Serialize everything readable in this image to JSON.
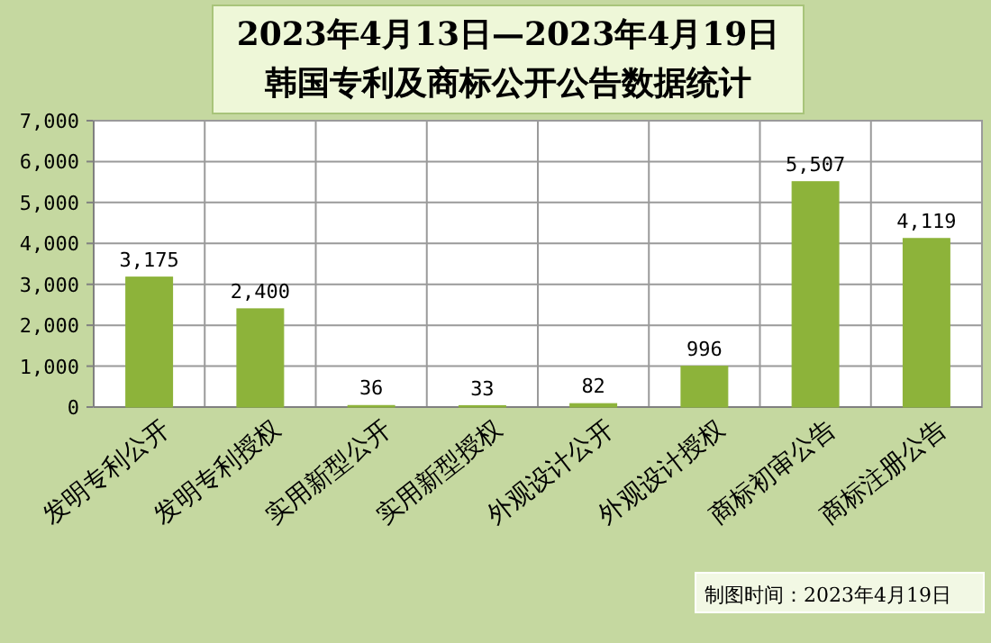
{
  "chart_data": {
    "type": "bar",
    "title": "2023年4月13日—2023年4月19日",
    "subtitle": "韩国专利及商标公开公告数据统计",
    "categories": [
      "发明专利公开",
      "发明专利授权",
      "实用新型公开",
      "实用新型授权",
      "外观设计公开",
      "外观设计授权",
      "商标初审公告",
      "商标注册公告"
    ],
    "values": [
      3175,
      2400,
      36,
      33,
      82,
      996,
      5507,
      4119
    ],
    "value_labels": [
      "3,175",
      "2,400",
      "36",
      "33",
      "82",
      "996",
      "5,507",
      "4,119"
    ],
    "color": "#8db33a",
    "ylim": [
      0,
      7000
    ],
    "yticks": [
      0,
      {
        "value": 1000,
        "label": "1,000"
      },
      {
        "value": 2000,
        "label": "2,000"
      },
      {
        "value": 3000,
        "label": "3,000"
      },
      {
        "value": 4000,
        "label": "4,000"
      },
      {
        "value": 5000,
        "label": "5,000"
      },
      {
        "value": 6000,
        "label": "6,000"
      },
      {
        "value": 7000,
        "label": "7,000"
      }
    ],
    "grid": true,
    "annotations": [
      "制图时间：2023年4月19日"
    ]
  }
}
